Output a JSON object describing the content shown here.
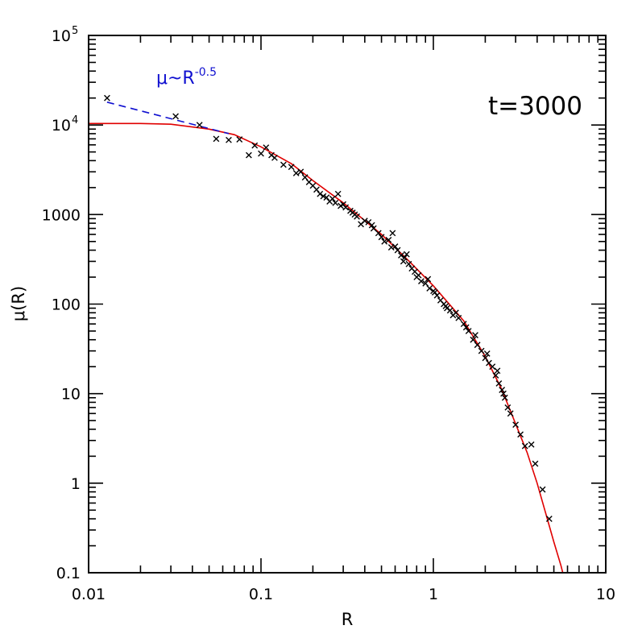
{
  "chart_data": {
    "type": "scatter",
    "xlabel": "R",
    "ylabel": "μ(R)",
    "xscale": "log",
    "yscale": "log",
    "xlim": [
      0.01,
      10
    ],
    "ylim": [
      0.1,
      100000
    ],
    "x_ticks": [
      {
        "value": 0.01,
        "label": "0.01"
      },
      {
        "value": 0.1,
        "label": "0.1"
      },
      {
        "value": 1,
        "label": "1"
      },
      {
        "value": 10,
        "label": "10"
      }
    ],
    "y_ticks": [
      {
        "value": 0.1,
        "label": "0.1"
      },
      {
        "value": 1,
        "label": "1"
      },
      {
        "value": 10,
        "label": "10"
      },
      {
        "value": 100,
        "label": "100"
      },
      {
        "value": 1000,
        "label": "1000"
      },
      {
        "value": 10000,
        "label": "10",
        "exp": "4"
      },
      {
        "value": 100000,
        "label": "10",
        "exp": "5"
      }
    ],
    "annotation_time": "t=3000",
    "reference_label": {
      "base": "μ~R",
      "exp": "-0.5"
    },
    "colors": {
      "points": "#000000",
      "fit": "#e00000",
      "reference": "#1010d0"
    },
    "grid": false,
    "points": [
      [
        0.0128,
        20000
      ],
      [
        0.032,
        12500
      ],
      [
        0.044,
        10000
      ],
      [
        0.055,
        7000
      ],
      [
        0.065,
        6800
      ],
      [
        0.075,
        6900
      ],
      [
        0.085,
        4600
      ],
      [
        0.092,
        5900
      ],
      [
        0.1,
        4800
      ],
      [
        0.107,
        5600
      ],
      [
        0.115,
        4600
      ],
      [
        0.12,
        4300
      ],
      [
        0.135,
        3600
      ],
      [
        0.15,
        3400
      ],
      [
        0.16,
        2900
      ],
      [
        0.17,
        3000
      ],
      [
        0.18,
        2600
      ],
      [
        0.19,
        2300
      ],
      [
        0.2,
        2100
      ],
      [
        0.21,
        1900
      ],
      [
        0.22,
        1700
      ],
      [
        0.23,
        1600
      ],
      [
        0.24,
        1550
      ],
      [
        0.25,
        1400
      ],
      [
        0.26,
        1500
      ],
      [
        0.27,
        1350
      ],
      [
        0.28,
        1700
      ],
      [
        0.29,
        1250
      ],
      [
        0.3,
        1300
      ],
      [
        0.31,
        1200
      ],
      [
        0.33,
        1100
      ],
      [
        0.35,
        1000
      ],
      [
        0.36,
        950
      ],
      [
        0.38,
        780
      ],
      [
        0.4,
        850
      ],
      [
        0.42,
        820
      ],
      [
        0.45,
        700
      ],
      [
        0.48,
        620
      ],
      [
        0.5,
        560
      ],
      [
        0.52,
        500
      ],
      [
        0.55,
        520
      ],
      [
        0.58,
        620
      ],
      [
        0.6,
        440
      ],
      [
        0.62,
        400
      ],
      [
        0.65,
        350
      ],
      [
        0.68,
        330
      ],
      [
        0.7,
        360
      ],
      [
        0.72,
        280
      ],
      [
        0.75,
        250
      ],
      [
        0.78,
        230
      ],
      [
        0.8,
        200
      ],
      [
        0.85,
        180
      ],
      [
        0.9,
        170
      ],
      [
        0.95,
        150
      ],
      [
        1.0,
        140
      ],
      [
        1.05,
        125
      ],
      [
        1.1,
        110
      ],
      [
        1.15,
        100
      ],
      [
        1.2,
        90
      ],
      [
        1.25,
        85
      ],
      [
        1.3,
        75
      ],
      [
        1.4,
        70
      ],
      [
        1.5,
        60
      ],
      [
        1.6,
        50
      ],
      [
        1.7,
        40
      ],
      [
        1.8,
        35
      ],
      [
        1.9,
        30
      ],
      [
        2.0,
        25
      ],
      [
        2.1,
        22
      ],
      [
        2.2,
        20
      ],
      [
        2.3,
        16
      ],
      [
        2.4,
        13
      ],
      [
        2.5,
        11
      ],
      [
        2.6,
        9
      ],
      [
        2.7,
        7
      ],
      [
        2.8,
        6
      ],
      [
        3.0,
        4.5
      ],
      [
        3.2,
        3.5
      ],
      [
        3.4,
        2.6
      ],
      [
        3.7,
        2.7
      ],
      [
        3.9,
        1.65
      ],
      [
        4.3,
        0.85
      ],
      [
        4.7,
        0.4
      ],
      [
        0.34,
        1050
      ],
      [
        0.44,
        760
      ],
      [
        0.57,
        430
      ],
      [
        0.67,
        300
      ],
      [
        0.82,
        210
      ],
      [
        0.93,
        190
      ],
      [
        1.02,
        135
      ],
      [
        1.18,
        95
      ],
      [
        1.35,
        80
      ],
      [
        1.55,
        55
      ],
      [
        1.75,
        45
      ],
      [
        2.05,
        28
      ],
      [
        2.35,
        18
      ],
      [
        2.55,
        10
      ]
    ],
    "fit_curve": [
      [
        0.01,
        10400
      ],
      [
        0.02,
        10400
      ],
      [
        0.03,
        10200
      ],
      [
        0.05,
        9000
      ],
      [
        0.07,
        7800
      ],
      [
        0.1,
        5700
      ],
      [
        0.15,
        3700
      ],
      [
        0.2,
        2400
      ],
      [
        0.3,
        1350
      ],
      [
        0.5,
        600
      ],
      [
        0.7,
        320
      ],
      [
        1.0,
        160
      ],
      [
        1.5,
        65
      ],
      [
        2.0,
        26
      ],
      [
        2.5,
        11
      ],
      [
        3.0,
        4.6
      ],
      [
        3.5,
        2.2
      ],
      [
        4.0,
        1.0
      ],
      [
        4.5,
        0.45
      ],
      [
        5.0,
        0.22
      ],
      [
        5.5,
        0.12
      ],
      [
        5.8,
        0.08
      ]
    ],
    "reference_line": [
      [
        0.0128,
        18000
      ],
      [
        0.065,
        8000
      ]
    ]
  }
}
